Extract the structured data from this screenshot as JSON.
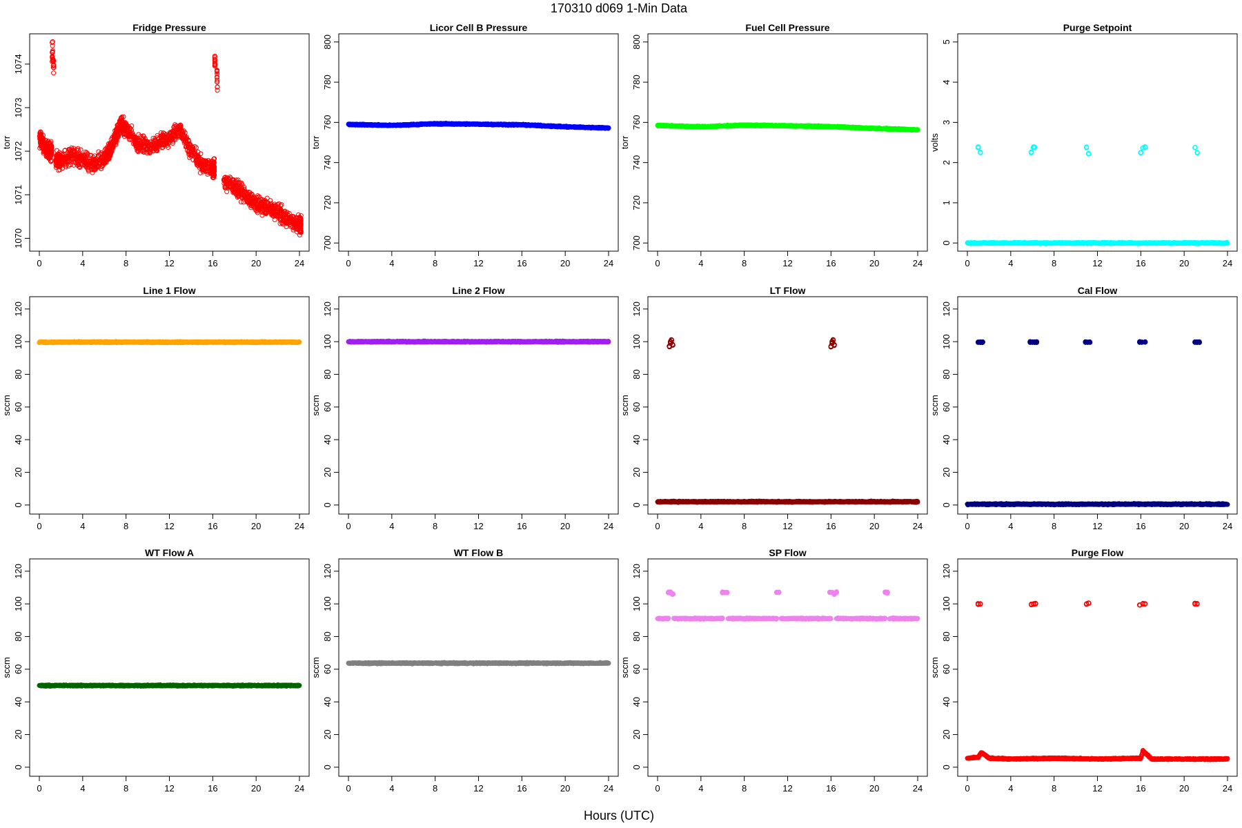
{
  "figure": {
    "title": "170310   d069   1-Min Data",
    "xlabel": "Hours (UTC)"
  },
  "chart_data": [
    {
      "type": "scatter",
      "title": "Fridge Pressure",
      "ylabel": "torr",
      "xlim": [
        0,
        24
      ],
      "ylim": [
        1069.8,
        1074.6
      ],
      "xticks": [
        0,
        4,
        8,
        12,
        16,
        20,
        24
      ],
      "yticks": [
        1070,
        1071,
        1072,
        1073,
        1074
      ],
      "color": "#ff0000",
      "marker": "open-circle",
      "series": [
        {
          "mode": "points",
          "x": [
            0.0,
            0.5,
            1.0,
            1.2,
            1.3,
            1.5,
            2.0,
            3.0,
            4.0,
            5.0,
            6.0,
            6.5,
            7.0,
            7.5,
            8.0,
            9.0,
            10.0,
            11.0,
            12.0,
            13.0,
            14.0,
            15.0,
            16.0,
            16.2,
            16.4,
            17.0,
            18.0,
            19.0,
            20.0,
            21.0,
            22.0,
            23.0,
            24.0
          ],
          "y": [
            1072.3,
            1072.1,
            1072.0,
            1074.3,
            1074.0,
            1071.8,
            1071.8,
            1071.9,
            1071.8,
            1071.7,
            1071.8,
            1072.0,
            1072.3,
            1072.6,
            1072.5,
            1072.2,
            1072.1,
            1072.2,
            1072.3,
            1072.5,
            1072.0,
            1071.7,
            1071.6,
            1074.1,
            1073.6,
            1071.3,
            1071.2,
            1071.0,
            1070.8,
            1070.7,
            1070.6,
            1070.4,
            1070.3
          ]
        }
      ]
    },
    {
      "type": "scatter",
      "title": "Licor Cell B Pressure",
      "ylabel": "torr",
      "xlim": [
        0,
        24
      ],
      "ylim": [
        698,
        802
      ],
      "xticks": [
        0,
        4,
        8,
        12,
        16,
        20,
        24
      ],
      "yticks": [
        700,
        720,
        740,
        760,
        780,
        800
      ],
      "color": "#0000ff",
      "marker": "filled-circle",
      "series": [
        {
          "mode": "band",
          "x": [
            0,
            4,
            8,
            12,
            16,
            20,
            24
          ],
          "y": [
            759,
            758.5,
            759.3,
            759.1,
            758.8,
            757.8,
            757.2
          ]
        }
      ]
    },
    {
      "type": "scatter",
      "title": "Fuel Cell Pressure",
      "ylabel": "torr",
      "xlim": [
        0,
        24
      ],
      "ylim": [
        698,
        802
      ],
      "xticks": [
        0,
        4,
        8,
        12,
        16,
        20,
        24
      ],
      "yticks": [
        700,
        720,
        740,
        760,
        780,
        800
      ],
      "color": "#00ff00",
      "marker": "filled-circle",
      "series": [
        {
          "mode": "band",
          "x": [
            0,
            4,
            8,
            12,
            16,
            20,
            24
          ],
          "y": [
            758.5,
            757.8,
            758.6,
            758.3,
            757.9,
            757.0,
            756.3
          ]
        }
      ]
    },
    {
      "type": "scatter",
      "title": "Purge Setpoint",
      "ylabel": "volts",
      "xlim": [
        0,
        24
      ],
      "ylim": [
        -0.1,
        5.1
      ],
      "xticks": [
        0,
        4,
        8,
        12,
        16,
        20,
        24
      ],
      "yticks": [
        0,
        1,
        2,
        3,
        4,
        5
      ],
      "color": "#00ffff",
      "marker": "open-circle",
      "series": [
        {
          "mode": "band",
          "x": [
            0,
            24
          ],
          "y": [
            0,
            0
          ]
        },
        {
          "mode": "points",
          "x": [
            1.0,
            1.2,
            5.9,
            6.1,
            6.2,
            11.0,
            11.2,
            16.0,
            16.2,
            16.4,
            21.0,
            21.2
          ],
          "y": [
            2.38,
            2.25,
            2.25,
            2.38,
            2.38,
            2.38,
            2.22,
            2.25,
            2.36,
            2.38,
            2.38,
            2.25
          ]
        }
      ]
    },
    {
      "type": "scatter",
      "title": "Line 1 Flow",
      "ylabel": "sccm",
      "xlim": [
        0,
        24
      ],
      "ylim": [
        -3,
        125
      ],
      "xticks": [
        0,
        4,
        8,
        12,
        16,
        20,
        24
      ],
      "yticks": [
        0,
        20,
        40,
        60,
        80,
        100,
        120
      ],
      "color": "#ffa500",
      "marker": "filled-circle",
      "series": [
        {
          "mode": "band",
          "x": [
            0,
            24
          ],
          "y": [
            99.7,
            99.7
          ]
        }
      ]
    },
    {
      "type": "scatter",
      "title": "Line 2 Flow",
      "ylabel": "sccm",
      "xlim": [
        0,
        24
      ],
      "ylim": [
        -3,
        125
      ],
      "xticks": [
        0,
        4,
        8,
        12,
        16,
        20,
        24
      ],
      "yticks": [
        0,
        20,
        40,
        60,
        80,
        100,
        120
      ],
      "color": "#a020f0",
      "marker": "filled-circle",
      "series": [
        {
          "mode": "band",
          "x": [
            0,
            24
          ],
          "y": [
            100,
            100
          ]
        }
      ]
    },
    {
      "type": "scatter",
      "title": "LT Flow",
      "ylabel": "sccm",
      "xlim": [
        0,
        24
      ],
      "ylim": [
        -3,
        125
      ],
      "xticks": [
        0,
        4,
        8,
        12,
        16,
        20,
        24
      ],
      "yticks": [
        0,
        20,
        40,
        60,
        80,
        100,
        120
      ],
      "color": "#8b0000",
      "marker": "open-circle",
      "series": [
        {
          "mode": "band",
          "x": [
            0,
            24
          ],
          "y": [
            2,
            2
          ]
        },
        {
          "mode": "points",
          "x": [
            1.1,
            1.2,
            1.3,
            1.4,
            1.2,
            16.0,
            16.1,
            16.2,
            16.3,
            16.1
          ],
          "y": [
            97,
            99,
            101,
            98,
            100,
            97,
            99,
            101,
            98,
            100
          ]
        }
      ]
    },
    {
      "type": "scatter",
      "title": "Cal Flow",
      "ylabel": "sccm",
      "xlim": [
        0,
        24
      ],
      "ylim": [
        -3,
        125
      ],
      "xticks": [
        0,
        4,
        8,
        12,
        16,
        20,
        24
      ],
      "yticks": [
        0,
        20,
        40,
        60,
        80,
        100,
        120
      ],
      "color": "#000080",
      "marker": "filled-circle",
      "series": [
        {
          "mode": "band",
          "x": [
            0,
            24
          ],
          "y": [
            0.5,
            0.5
          ]
        },
        {
          "mode": "points",
          "x": [
            1.0,
            1.2,
            1.4,
            5.8,
            6.0,
            6.2,
            6.4,
            10.9,
            11.1,
            11.3,
            15.9,
            16.1,
            16.4,
            21.0,
            21.2,
            21.4
          ],
          "y": [
            99.7,
            99.7,
            99.7,
            99.7,
            99.7,
            99.7,
            99.7,
            99.7,
            99.7,
            99.7,
            99.7,
            99.7,
            99.7,
            99.7,
            99.7,
            99.7
          ]
        }
      ]
    },
    {
      "type": "scatter",
      "title": "WT Flow A",
      "ylabel": "sccm",
      "xlim": [
        0,
        24
      ],
      "ylim": [
        -3,
        125
      ],
      "xticks": [
        0,
        4,
        8,
        12,
        16,
        20,
        24
      ],
      "yticks": [
        0,
        20,
        40,
        60,
        80,
        100,
        120
      ],
      "color": "#006400",
      "marker": "filled-circle",
      "series": [
        {
          "mode": "band",
          "x": [
            0,
            24
          ],
          "y": [
            50,
            50
          ]
        }
      ]
    },
    {
      "type": "scatter",
      "title": "WT Flow B",
      "ylabel": "sccm",
      "xlim": [
        0,
        24
      ],
      "ylim": [
        -3,
        125
      ],
      "xticks": [
        0,
        4,
        8,
        12,
        16,
        20,
        24
      ],
      "yticks": [
        0,
        20,
        40,
        60,
        80,
        100,
        120
      ],
      "color": "#808080",
      "marker": "filled-circle",
      "series": [
        {
          "mode": "band",
          "x": [
            0,
            24
          ],
          "y": [
            63.7,
            63.7
          ]
        }
      ]
    },
    {
      "type": "scatter",
      "title": "SP Flow",
      "ylabel": "sccm",
      "xlim": [
        0,
        24
      ],
      "ylim": [
        -3,
        125
      ],
      "xticks": [
        0,
        4,
        8,
        12,
        16,
        20,
        24
      ],
      "yticks": [
        0,
        20,
        40,
        60,
        80,
        100,
        120
      ],
      "color": "#ee82ee",
      "marker": "filled-circle",
      "series": [
        {
          "mode": "band",
          "x": [
            0,
            1.0
          ],
          "y": [
            91,
            91
          ]
        },
        {
          "mode": "band",
          "x": [
            1.5,
            6.0
          ],
          "y": [
            91,
            91
          ]
        },
        {
          "mode": "band",
          "x": [
            6.5,
            11.0
          ],
          "y": [
            91,
            91
          ]
        },
        {
          "mode": "band",
          "x": [
            11.4,
            16.0
          ],
          "y": [
            91,
            91
          ]
        },
        {
          "mode": "band",
          "x": [
            16.5,
            21.0
          ],
          "y": [
            91,
            91
          ]
        },
        {
          "mode": "band",
          "x": [
            21.4,
            24.0
          ],
          "y": [
            91,
            91
          ]
        },
        {
          "mode": "points",
          "x": [
            1.0,
            1.1,
            1.2,
            1.4,
            6.0,
            6.2,
            6.4,
            11.0,
            11.2,
            15.9,
            16.1,
            16.3,
            16.5,
            21.0,
            21.2
          ],
          "y": [
            107,
            107,
            107,
            106,
            107,
            107,
            107,
            107,
            107,
            107,
            107,
            106,
            107,
            107,
            107
          ]
        }
      ]
    },
    {
      "type": "scatter",
      "title": "Purge Flow",
      "ylabel": "sccm",
      "xlim": [
        0,
        24
      ],
      "ylim": [
        -3,
        125
      ],
      "xticks": [
        0,
        4,
        8,
        12,
        16,
        20,
        24
      ],
      "yticks": [
        0,
        20,
        40,
        60,
        80,
        100,
        120
      ],
      "color": "#ff0000",
      "marker": "open-circle",
      "series": [
        {
          "mode": "band",
          "x": [
            0,
            1.0,
            1.3,
            2.0,
            4.0,
            8.0,
            12.0,
            16.0,
            16.2,
            17.0,
            20.0,
            24.0
          ],
          "y": [
            5.5,
            6.0,
            9.0,
            5.5,
            5.0,
            5.5,
            5.0,
            5.5,
            10.0,
            5.0,
            5.0,
            5.0
          ]
        },
        {
          "mode": "points",
          "x": [
            1.0,
            1.2,
            5.9,
            6.1,
            6.3,
            11.0,
            11.2,
            15.9,
            16.2,
            16.4,
            21.0,
            21.2
          ],
          "y": [
            100,
            100,
            99.5,
            100,
            100,
            100,
            100.5,
            99.5,
            100,
            100,
            100,
            100
          ]
        }
      ]
    }
  ]
}
